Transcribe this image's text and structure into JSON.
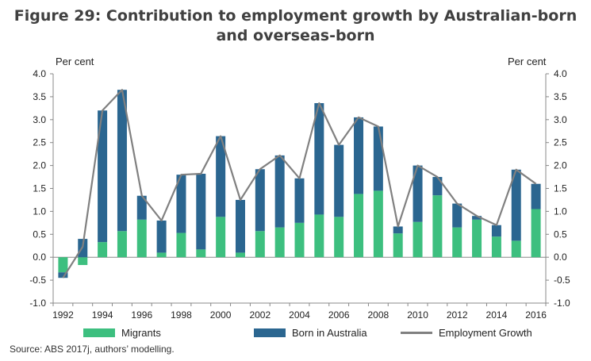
{
  "title_line1": "Figure 29: Contribution to employment growth by Australian-born",
  "title_line2": "and overseas-born",
  "unit_left": "Per cent",
  "unit_right": "Per cent",
  "source": "Source: ABS 2017j, authors’ modelling.",
  "colors": {
    "migrants": "#3dbf7f",
    "born": "#2b6690",
    "growth": "#808080"
  },
  "chart_data": {
    "type": "bar",
    "stacked": true,
    "title": "Figure 29: Contribution to employment growth by Australian-born and overseas-born",
    "ylabel": "Per cent",
    "ylim": [
      -1.0,
      4.0
    ],
    "yticks": [
      "-1.0",
      "-0.5",
      "0.0",
      "0.5",
      "1.0",
      "1.5",
      "2.0",
      "2.5",
      "3.0",
      "3.5",
      "4.0"
    ],
    "xtick_labels": [
      "1992",
      "1994",
      "1996",
      "1998",
      "2000",
      "2002",
      "2004",
      "2006",
      "2008",
      "2010",
      "2012",
      "2014",
      "2016"
    ],
    "categories": [
      "1992",
      "1993",
      "1994",
      "1995",
      "1996",
      "1997",
      "1998",
      "1999",
      "2000",
      "2001",
      "2002",
      "2003",
      "2004",
      "2005",
      "2006",
      "2007",
      "2008",
      "2009",
      "2010",
      "2011",
      "2012",
      "2013",
      "2014",
      "2015",
      "2016"
    ],
    "series": [
      {
        "name": "Migrants",
        "type": "bar",
        "values": [
          -0.33,
          -0.17,
          0.33,
          0.57,
          0.82,
          0.1,
          0.53,
          0.17,
          0.88,
          0.1,
          0.57,
          0.65,
          0.75,
          0.93,
          0.88,
          1.38,
          1.45,
          0.52,
          0.77,
          1.35,
          0.65,
          0.82,
          0.45,
          0.36,
          1.05
        ]
      },
      {
        "name": "Born in Australia",
        "type": "bar",
        "values": [
          -0.12,
          0.4,
          2.87,
          3.08,
          0.52,
          0.7,
          1.27,
          1.65,
          1.76,
          1.15,
          1.35,
          1.57,
          0.97,
          2.43,
          1.57,
          1.67,
          1.4,
          0.15,
          1.23,
          0.4,
          0.52,
          0.08,
          0.25,
          1.55,
          0.55
        ]
      },
      {
        "name": "Employment Growth",
        "type": "line",
        "values": [
          -0.45,
          0.23,
          3.2,
          3.65,
          1.34,
          0.8,
          1.8,
          1.82,
          2.64,
          1.25,
          1.92,
          2.22,
          1.72,
          3.36,
          2.45,
          3.05,
          2.85,
          0.67,
          2.0,
          1.75,
          1.17,
          0.9,
          0.7,
          1.91,
          1.6
        ]
      }
    ],
    "legend": "bottom",
    "grid": false
  }
}
